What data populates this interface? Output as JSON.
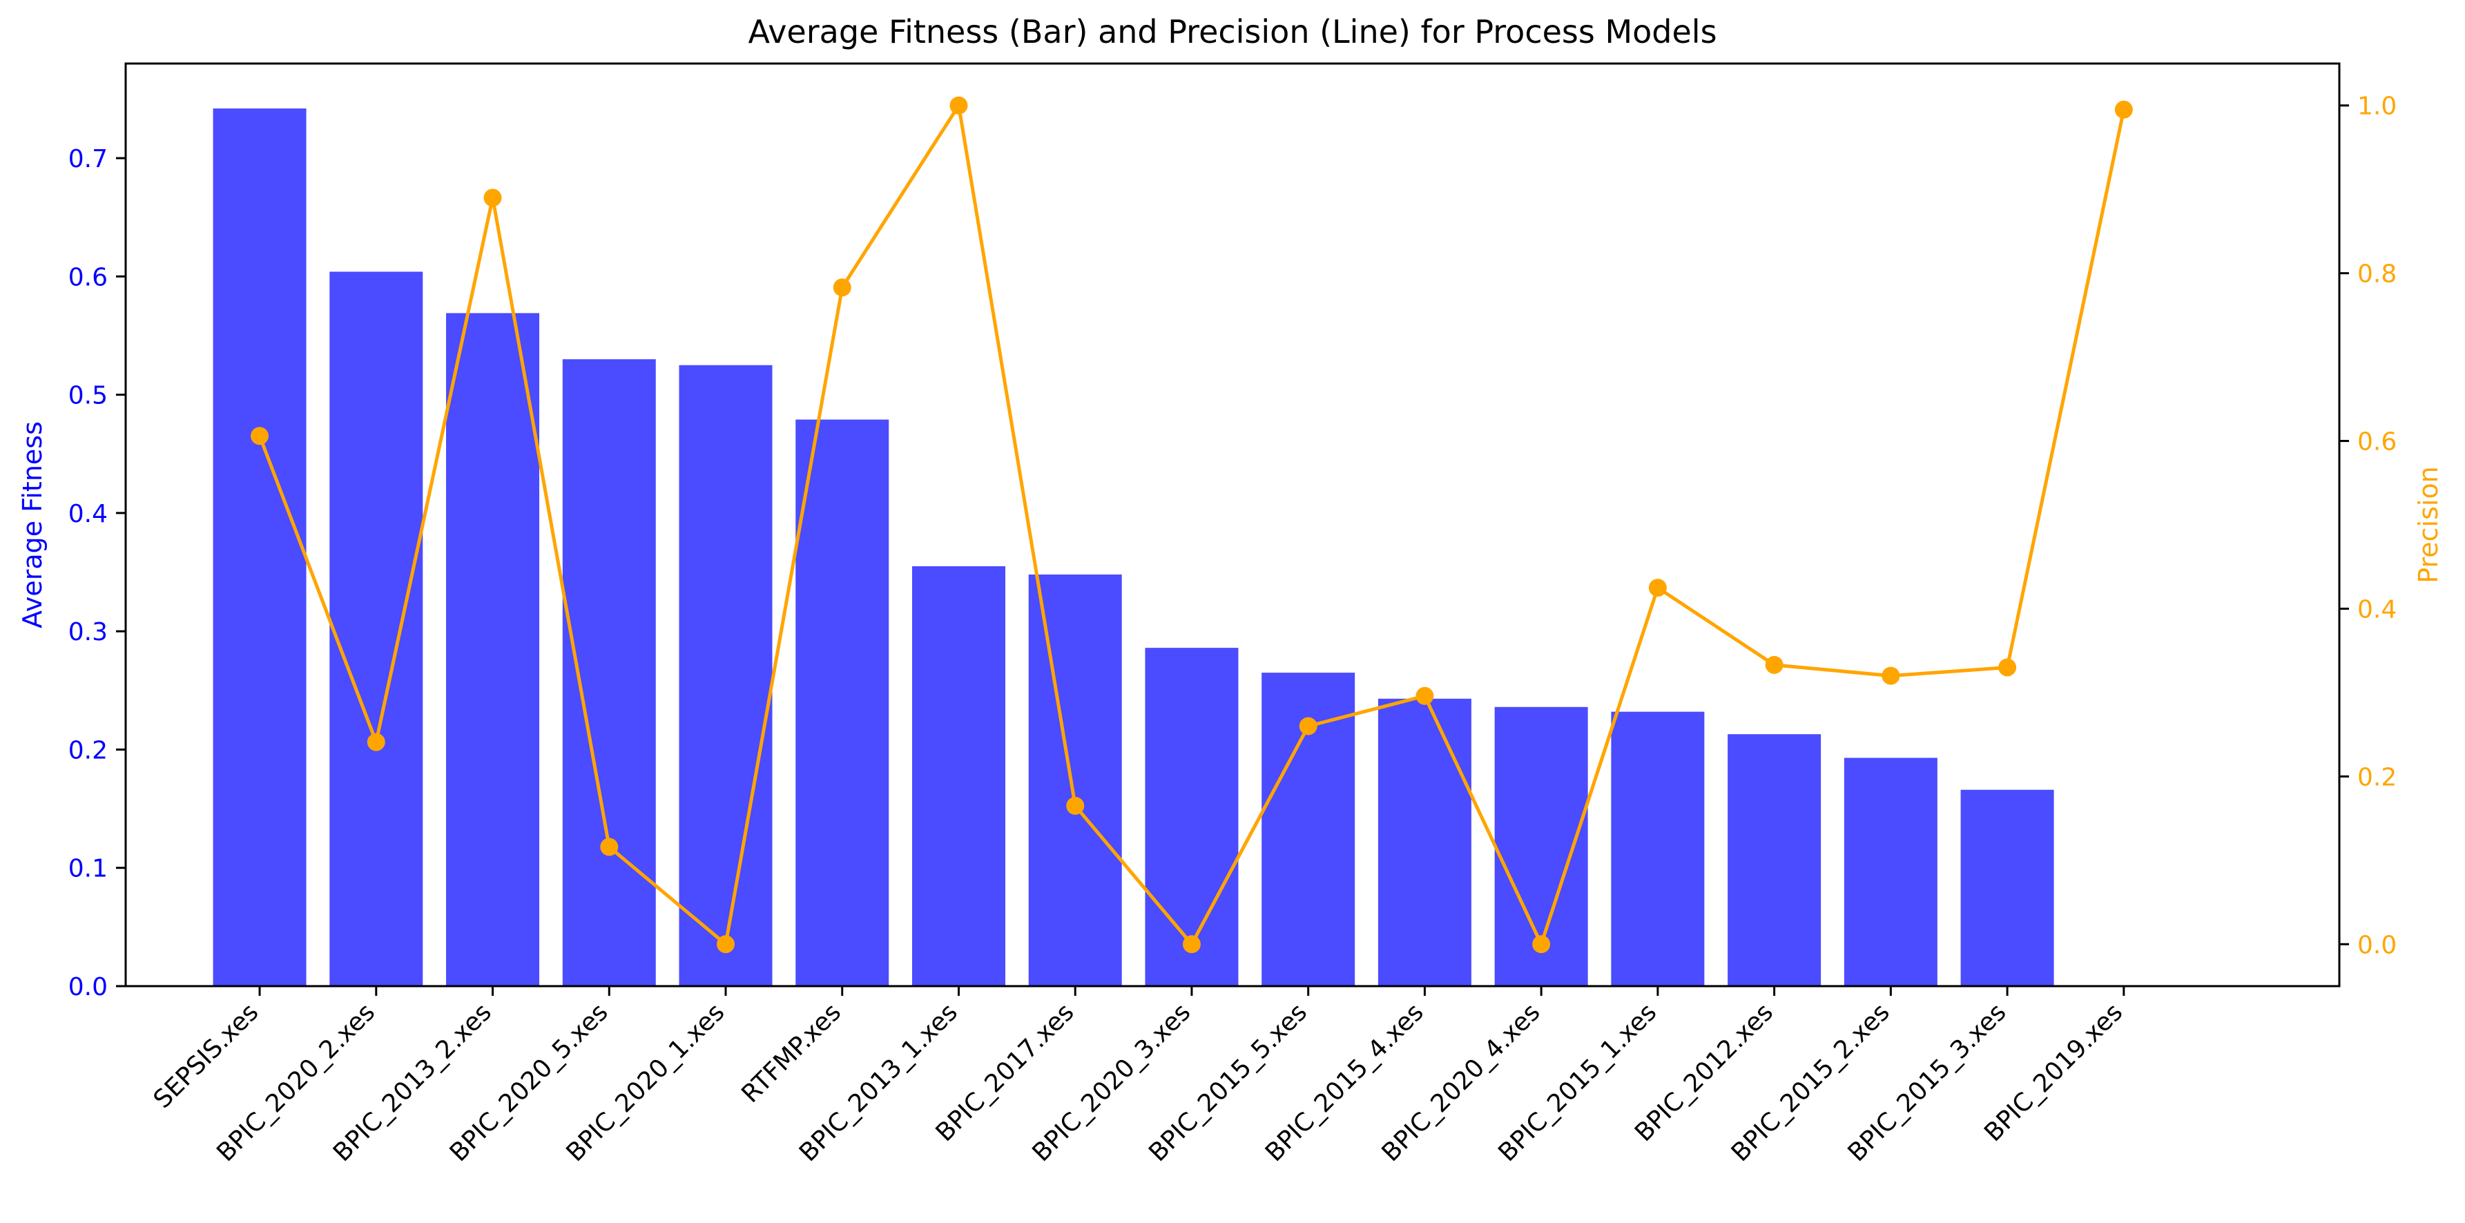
{
  "chart_data": {
    "type": "bar",
    "title": "Average Fitness (Bar) and Precision (Line) for Process Models",
    "xlabel": "",
    "categories": [
      "SEPSIS.xes",
      "BPIC_2020_2.xes",
      "BPIC_2013_2.xes",
      "BPIC_2020_5.xes",
      "BPIC_2020_1.xes",
      "RTFMP.xes",
      "BPIC_2013_1.xes",
      "BPIC_2017.xes",
      "BPIC_2020_3.xes",
      "BPIC_2015_5.xes",
      "BPIC_2015_4.xes",
      "BPIC_2020_4.xes",
      "BPIC_2015_1.xes",
      "BPIC_2012.xes",
      "BPIC_2015_2.xes",
      "BPIC_2015_3.xes",
      "BPIC_2019.xes"
    ],
    "series": [
      {
        "name": "",
        "type": "bar",
        "axis": "left",
        "color": "#4b4bff",
        "values": [
          0.742,
          0.604,
          0.569,
          0.53,
          0.525,
          0.479,
          0.355,
          0.348,
          0.286,
          0.265,
          0.243,
          0.236,
          0.232,
          0.213,
          0.193,
          0.166,
          0.0
        ]
      },
      {
        "name": "",
        "type": "line",
        "axis": "right",
        "color": "#ffa500",
        "values": [
          0.606,
          0.241,
          0.89,
          0.116,
          0.0,
          0.783,
          1.0,
          0.165,
          0.0,
          0.26,
          0.296,
          0.0,
          0.425,
          0.333,
          0.32,
          0.33,
          0.995
        ]
      }
    ],
    "y_left": {
      "label": "Average Fitness",
      "color": "#0000ff",
      "range": [
        0.0,
        0.78
      ],
      "ticks": [
        0.0,
        0.1,
        0.2,
        0.3,
        0.4,
        0.5,
        0.6,
        0.7
      ],
      "tick_labels": [
        "0.0",
        "0.1",
        "0.2",
        "0.3",
        "0.4",
        "0.5",
        "0.6",
        "0.7"
      ]
    },
    "y_right": {
      "label": "Precision",
      "color": "#ffa500",
      "range": [
        -0.05,
        1.05
      ],
      "ticks": [
        0.0,
        0.2,
        0.4,
        0.6,
        0.8,
        1.0
      ],
      "tick_labels": [
        "0.0",
        "0.2",
        "0.4",
        "0.6",
        "0.8",
        "1.0"
      ]
    },
    "grid": false,
    "legend": "none"
  }
}
